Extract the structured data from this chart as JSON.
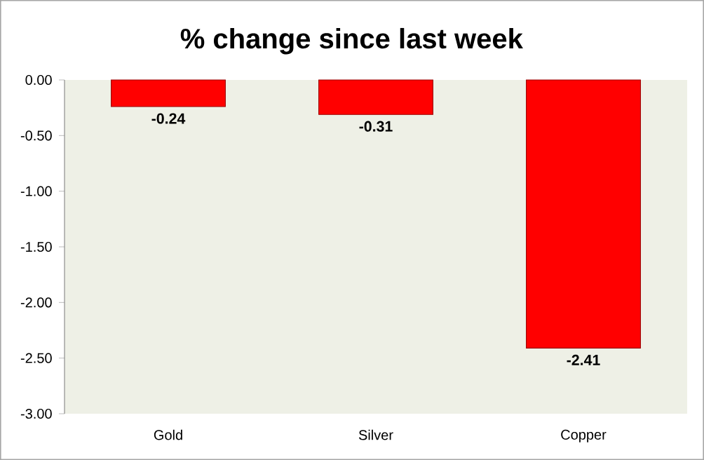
{
  "chart_data": {
    "type": "bar",
    "title": "% change since last week",
    "categories": [
      "Gold",
      "Silver",
      "Copper"
    ],
    "values": [
      -0.24,
      -0.31,
      -2.41
    ],
    "color": "#ff0000",
    "data_labels": true,
    "ylim": [
      -3,
      0
    ],
    "yticks": [
      {
        "value": -3,
        "label": "-3.00"
      },
      {
        "value": -2.5,
        "label": "-2.50"
      },
      {
        "value": -2,
        "label": "-2.00"
      },
      {
        "value": -1.5,
        "label": "-1.50"
      },
      {
        "value": -1,
        "label": "-1.00"
      },
      {
        "value": -0.5,
        "label": "-0.50"
      },
      {
        "value": 0,
        "label": "0.00"
      }
    ],
    "grid": false
  }
}
